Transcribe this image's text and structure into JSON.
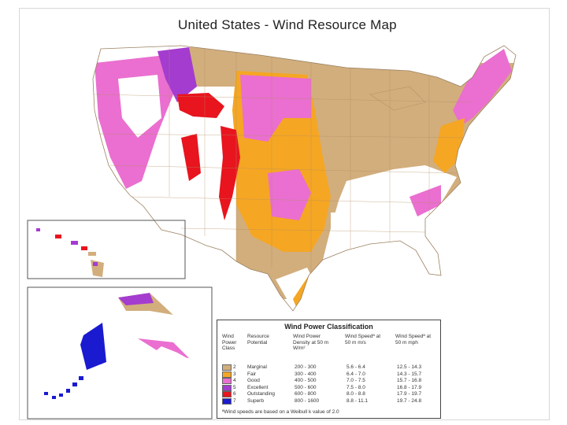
{
  "title": "United States - Wind Resource Map",
  "colors": {
    "class2": "#d2ae7d",
    "class3": "#f5a623",
    "class4": "#ea6fd0",
    "class5": "#a43ccf",
    "class6": "#e8141e",
    "class7": "#1a1ad0",
    "land_low": "#ffffff",
    "state_border": "#c9b08a"
  },
  "legend": {
    "title": "Wind Power Classification",
    "headers": {
      "c1": "Wind Power Class",
      "c2": "Resource Potential",
      "c3": "Wind Power Density at 50 m W/m²",
      "c4": "Wind Speedª at 50 m m/s",
      "c5": "Wind Speedª at 50 m mph"
    },
    "rows": [
      {
        "cls": "2",
        "potential": "Marginal",
        "density": "200 - 300",
        "ms": "5.6 - 6.4",
        "mph": "12.5 - 14.3",
        "color": "#d2ae7d"
      },
      {
        "cls": "3",
        "potential": "Fair",
        "density": "300 - 400",
        "ms": "6.4 - 7.0",
        "mph": "14.3 - 15.7",
        "color": "#f5a623"
      },
      {
        "cls": "4",
        "potential": "Good",
        "density": "400 - 500",
        "ms": "7.0 - 7.5",
        "mph": "15.7 - 16.8",
        "color": "#ea6fd0"
      },
      {
        "cls": "5",
        "potential": "Excellent",
        "density": "500 - 600",
        "ms": "7.5 - 8.0",
        "mph": "16.8 - 17.9",
        "color": "#a43ccf"
      },
      {
        "cls": "6",
        "potential": "Outstanding",
        "density": "600 - 800",
        "ms": "8.0 - 8.8",
        "mph": "17.9 - 19.7",
        "color": "#e8141e"
      },
      {
        "cls": "7",
        "potential": "Superb",
        "density": "800 - 1600",
        "ms": "8.8 - 11.1",
        "mph": "19.7 - 24.8",
        "color": "#1a1ad0"
      }
    ],
    "footnote": "ªWind speeds are based on a Weibull k value of 2.0"
  }
}
